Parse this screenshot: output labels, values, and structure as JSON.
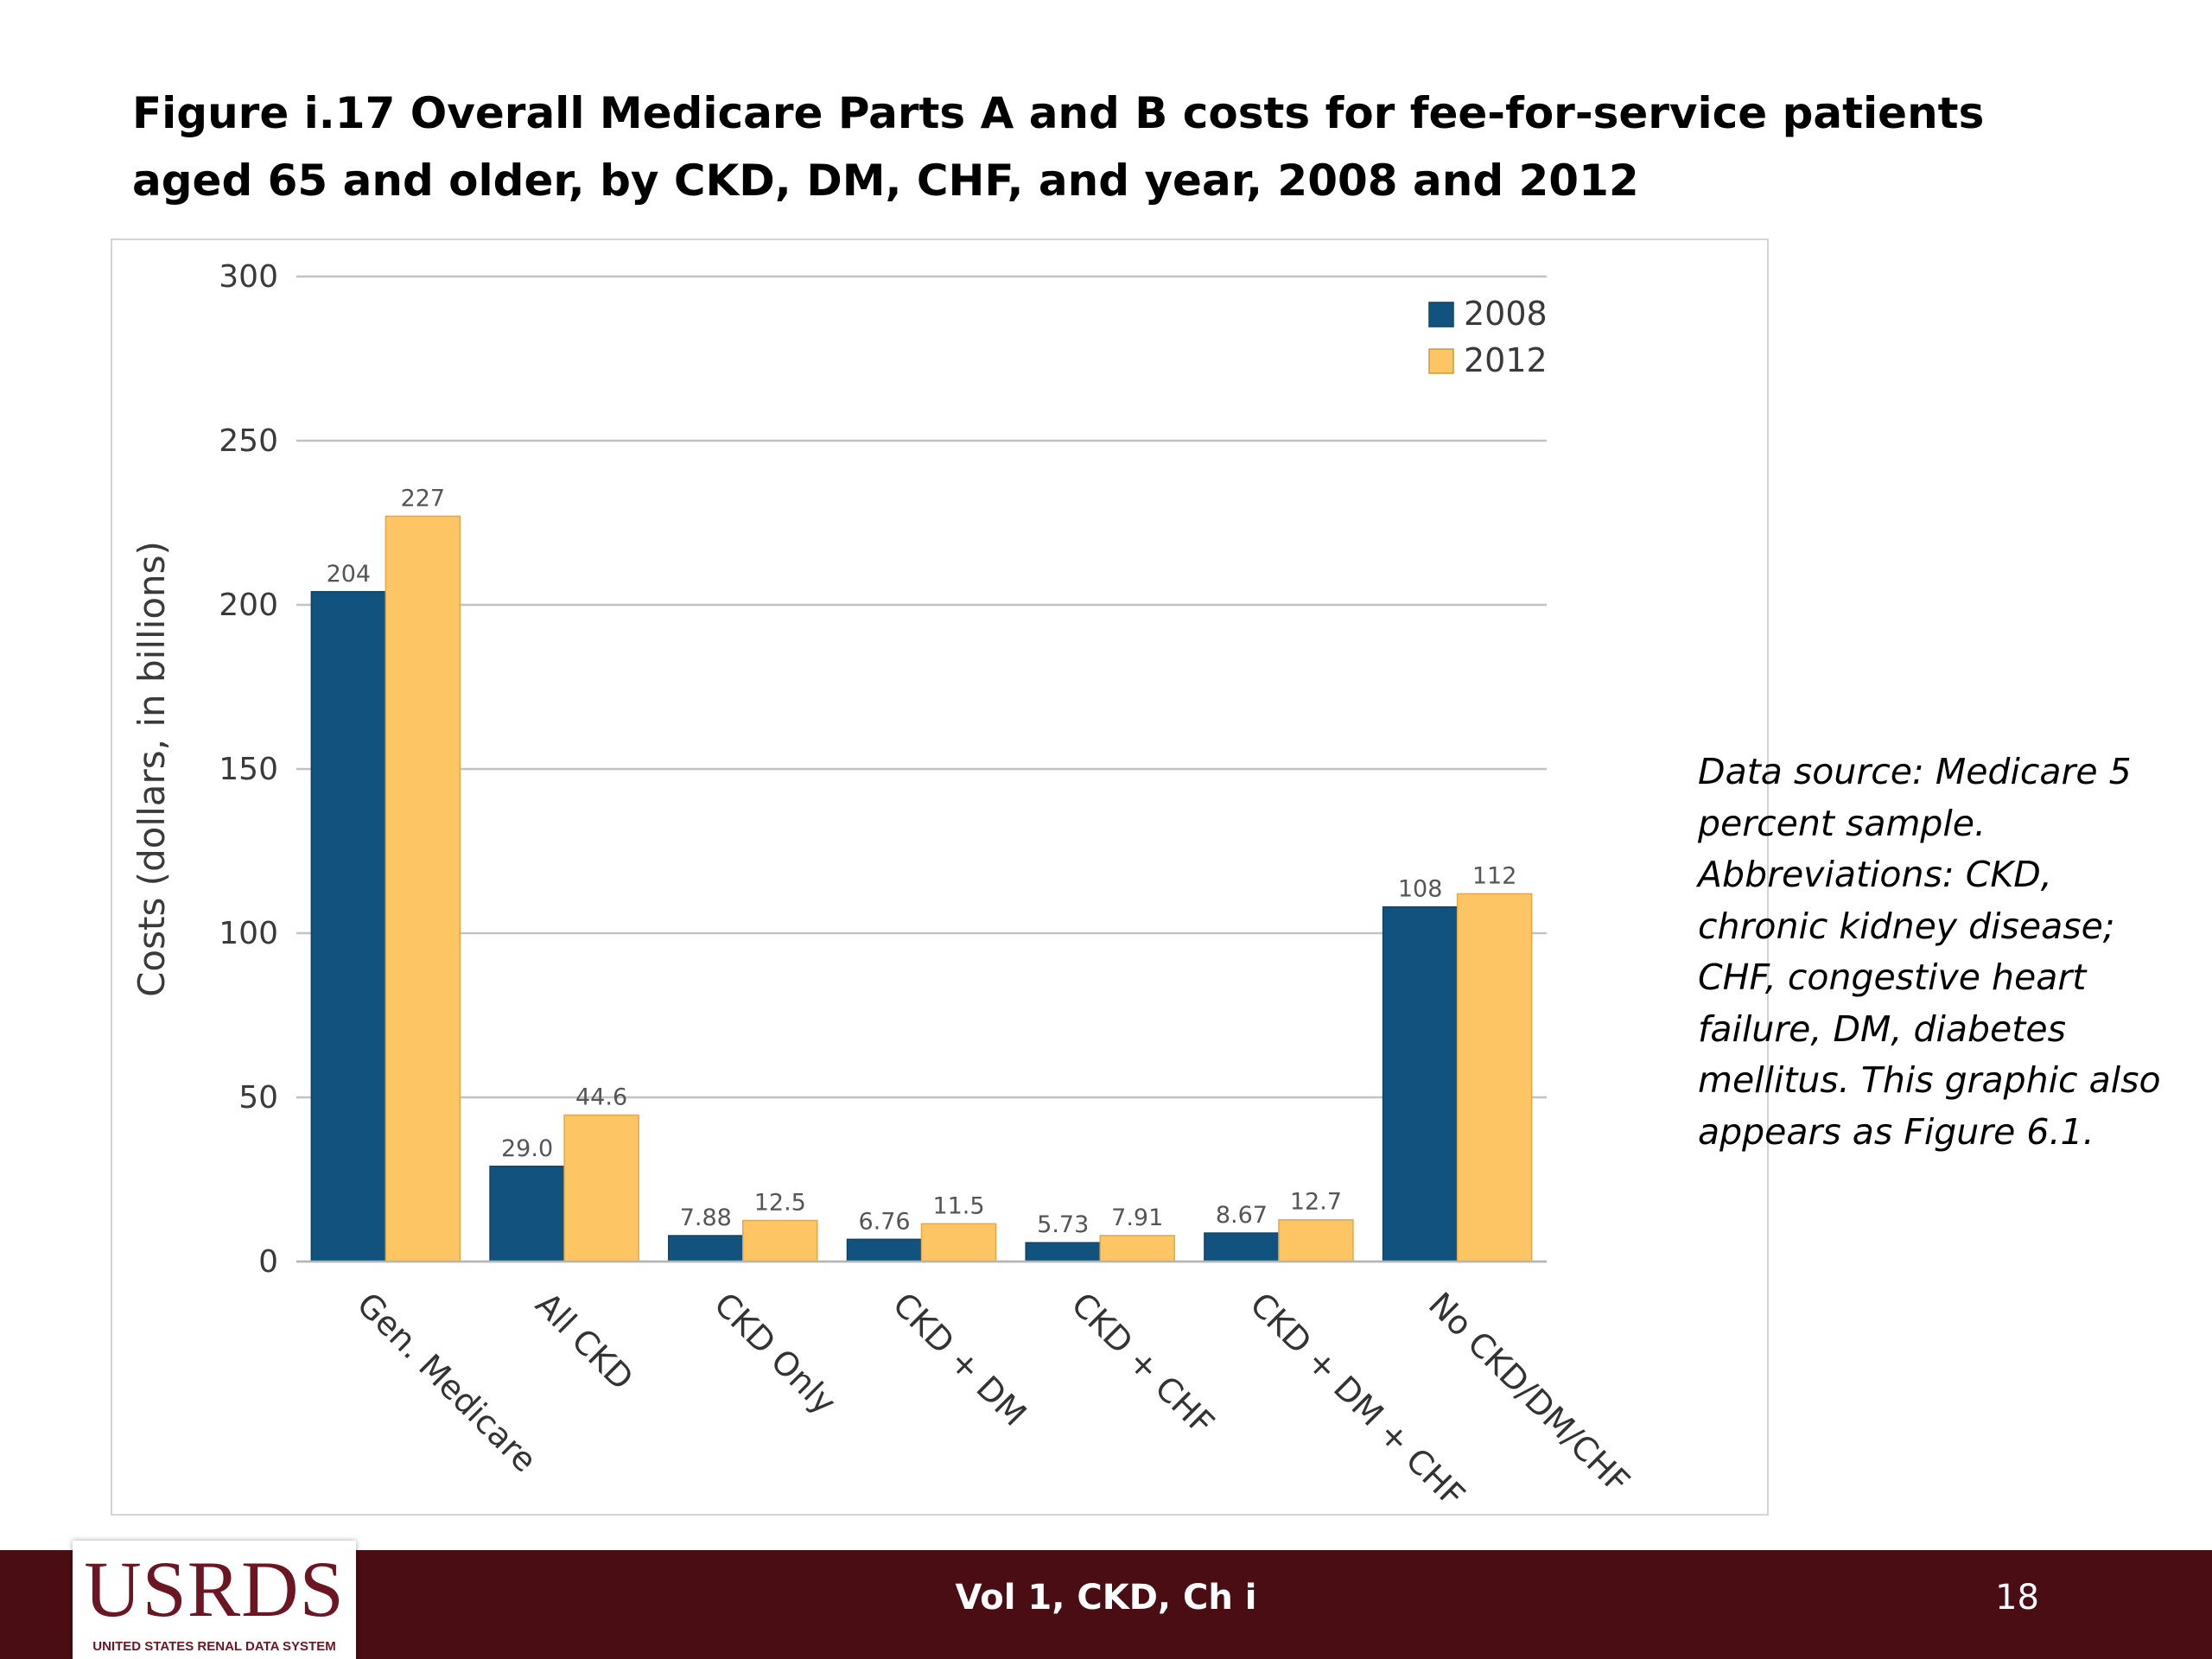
{
  "slide": {
    "title": "Figure i.17  Overall Medicare Parts A and B costs for fee-for-service patients aged 65 and older, by CKD, DM, CHF, and year, 2008 and 2012",
    "note": "Data source: Medicare 5 percent sample. Abbreviations: CKD, chronic kidney disease; CHF, congestive heart failure, DM, diabetes mellitus. This graphic also appears as Figure 6.1."
  },
  "footer": {
    "center_text": "Vol 1, CKD, Ch i",
    "page_number": "18",
    "logo_text": "USRDS",
    "logo_subtext": "UNITED STATES RENAL DATA SYSTEM",
    "background_color": "#4a0d13"
  },
  "chart_data": {
    "type": "bar",
    "title": "",
    "xlabel": "",
    "ylabel": "Costs (dollars, in billions)",
    "ylim": [
      0,
      300
    ],
    "yticks": [
      0,
      50,
      100,
      150,
      200,
      250,
      300
    ],
    "grid": true,
    "legend_position": "top-right",
    "categories": [
      "Gen. Medicare",
      "All CKD",
      "CKD Only",
      "CKD + DM",
      "CKD + CHF",
      "CKD + DM + CHF",
      "No CKD/DM/CHF"
    ],
    "series": [
      {
        "name": "2008",
        "color": "#12527f",
        "values": [
          204,
          29.0,
          7.88,
          6.76,
          5.73,
          8.67,
          108
        ],
        "labels": [
          "204",
          "29.0",
          "7.88",
          "6.76",
          "5.73",
          "8.67",
          "108"
        ]
      },
      {
        "name": "2012",
        "color": "#fdc564",
        "values": [
          227,
          44.6,
          12.5,
          11.5,
          7.91,
          12.7,
          112
        ],
        "labels": [
          "227",
          "44.6",
          "12.5",
          "11.5",
          "7.91",
          "12.7",
          "112"
        ]
      }
    ]
  }
}
